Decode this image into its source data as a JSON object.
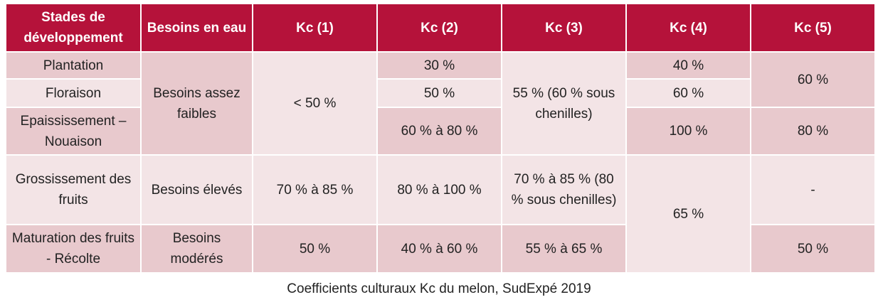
{
  "table": {
    "header": [
      "Stades de développement",
      "Besoins en eau",
      "Kc (1)",
      "Kc (2)",
      "Kc (3)",
      "Kc (4)",
      "Kc (5)"
    ],
    "rows": [
      [
        "Plantation",
        "Besoins assez faibles",
        "< 50 %",
        "30 %",
        "55 % (60 % sous chenilles)",
        "40 %",
        "60 %"
      ],
      [
        "Floraison",
        "50 %",
        "60 %"
      ],
      [
        "Epaississement – Nouaison",
        "60 % à 80 %",
        "100 %",
        "80 %"
      ],
      [
        "Grossissement des fruits",
        "Besoins élevés",
        "70 % à 85 %",
        "80 % à 100 %",
        "70 % à 85 % (80 % sous chenilles)",
        "65 %",
        "-"
      ],
      [
        "Maturation des fruits - Récolte",
        "Besoins modérés",
        "50 %",
        "40 % à 60 %",
        "55 % à 65 %",
        "50 %"
      ]
    ],
    "caption": "Coefficients culturaux Kc du melon, SudExpé 2019"
  }
}
